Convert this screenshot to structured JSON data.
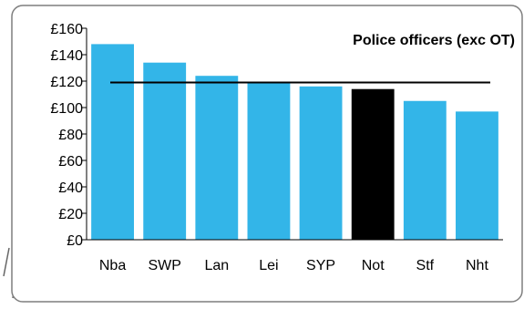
{
  "chart_data": {
    "type": "bar",
    "title": "Police officers (exc OT)",
    "categories": [
      "Nba",
      "SWP",
      "Lan",
      "Lei",
      "SYP",
      "Not",
      "Stf",
      "Nht"
    ],
    "values": [
      148,
      134,
      124,
      119,
      116,
      114,
      105,
      97
    ],
    "y_tick_labels": [
      "£0",
      "£20",
      "£40",
      "£60",
      "£80",
      "£100",
      "£120",
      "£140",
      "£160"
    ],
    "ylim": [
      0,
      160
    ],
    "reference_line": 119,
    "highlight_category": "Not",
    "grid": false,
    "legend": "none",
    "colors": {
      "bar": "#33b5e8",
      "highlight": "#000000",
      "reference_line": "#000000",
      "frame": "#7f7f7f"
    }
  }
}
